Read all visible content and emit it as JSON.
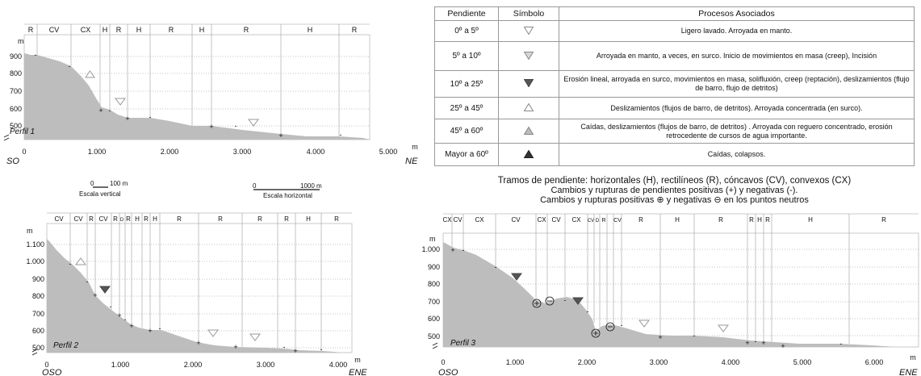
{
  "legend": {
    "headers": [
      "Pendiente",
      "Símbolo",
      "Procesos Asociados"
    ],
    "rows": [
      {
        "slope": "0º a 5º",
        "symbol": "down-open",
        "process": "Ligero lavado. Arroyada en manto."
      },
      {
        "slope": "5º a 10º",
        "symbol": "down-gray",
        "process": "Arroyada en manto, a veces, en surco.  Inicio de movimientos en masa (creep), Incisión"
      },
      {
        "slope": "10º a 25º",
        "symbol": "down-dark",
        "process": "Erosión lineal, arroyada en surco, movimientos en masa, solifluxión, creep (reptación),  deslizamientos (flujo de barro, flujo de detritos)"
      },
      {
        "slope": "25º a 45º",
        "symbol": "up-open",
        "process": "Deslizamientos (flujos de barro, de detritos). Arroyada concentrada (en surco)."
      },
      {
        "slope": "45º a 60º",
        "symbol": "up-gray",
        "process": "Caídas, deslizamientos (flujos de barro, de detritos) . Arroyada con reguero concentrado, erosión retrocedente de cursos de agua importante."
      },
      {
        "slope": "Mayor a 60º",
        "symbol": "up-dark",
        "process": "Caídas, colapsos."
      }
    ]
  },
  "notes": {
    "line1": "Tramos de pendiente: horizontales (H), rectilíneos (R), cóncavos (CV), convexos (CX)",
    "line2": "Cambios y rupturas de pendientes positivas (+) y negativas (-).",
    "line3_pre": "Cambios y rupturas positivas",
    "line3_mid": "y negativas",
    "line3_post": "en los puntos neutros"
  },
  "scales": {
    "vertical": {
      "zero": "0",
      "value": "100 m",
      "label": "Escala vertical"
    },
    "horizontal": {
      "zero": "0",
      "value": "1000 m",
      "label": "Escala horizontal"
    }
  },
  "profiles": [
    {
      "name": "Perfil 1",
      "start": "SO",
      "end": "NE",
      "unit": "m",
      "segments": [
        "R",
        "CV",
        "CX",
        "H",
        "R",
        "H",
        "R",
        "H",
        "R",
        "H",
        "R"
      ],
      "y_ticks": [
        "500",
        "600",
        "700",
        "800",
        "900"
      ],
      "x_ticks": [
        "0",
        "1.000",
        "2.000",
        "3.000",
        "4.000",
        "5.000"
      ]
    },
    {
      "name": "Perfil 2",
      "start": "OSO",
      "end": "ENE",
      "unit": "m",
      "segments": [
        "CV",
        "CV",
        "R",
        "CV",
        "R",
        "D",
        "R",
        "H",
        "R",
        "H",
        "R",
        "R",
        "R",
        "R",
        "H",
        "R"
      ],
      "y_ticks": [
        "500",
        "600",
        "700",
        "800",
        "900",
        "1.000",
        "1.100"
      ],
      "x_ticks": [
        "0",
        "1.000",
        "2.000",
        "3.000",
        "4.000"
      ]
    },
    {
      "name": "Perfil 3",
      "start": "OSO",
      "end": "ENE",
      "unit": "m",
      "segments": [
        "CX",
        "CV",
        "CX",
        "CV",
        "CX",
        "CV",
        "CX",
        "CV",
        "D",
        "R",
        "CV",
        "R",
        "H",
        "R",
        "R",
        "H",
        "R",
        "H",
        "R"
      ],
      "y_ticks": [
        "500",
        "600",
        "700",
        "800",
        "900",
        "1.000"
      ],
      "x_ticks": [
        "0",
        "1.000",
        "2.000",
        "3.000",
        "4.000",
        "5.000",
        "6.000"
      ]
    }
  ],
  "colors": {
    "terrain": "#bdbdbd",
    "symbol_gray": "#bbbbbb",
    "symbol_dark": "#555555",
    "grid": "#b0b0b0"
  }
}
